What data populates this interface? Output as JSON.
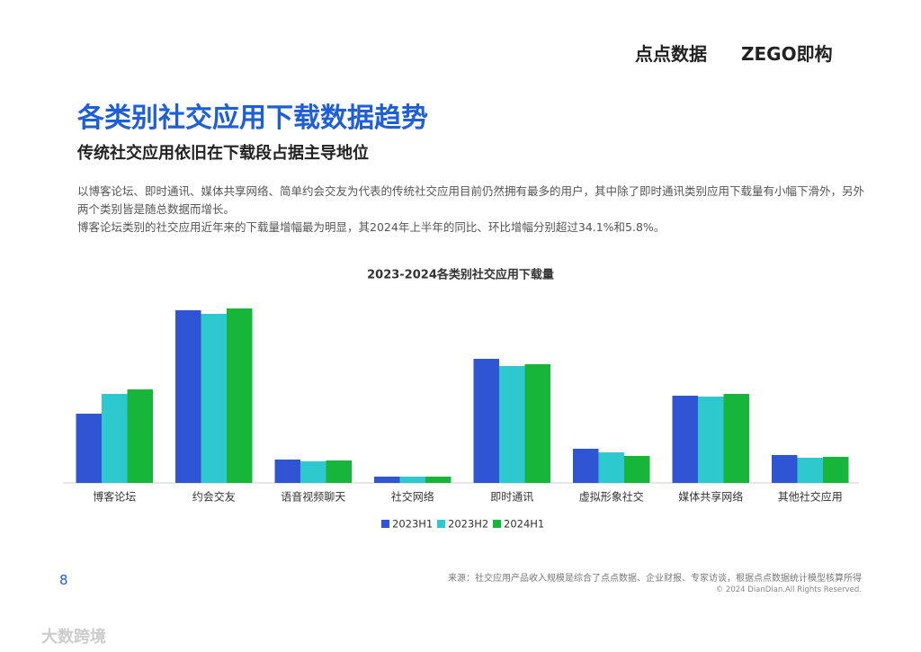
{
  "header": {
    "brand1": "点点数据",
    "brand2": "ZEGO即构",
    "title": "各类别社交应用下载数据趋势",
    "subtitle": "传统社交应用依旧在下载段占据主导地位",
    "paragraphs": [
      "以博客论坛、即时通讯、媒体共享网络、简单约会交友为代表的传统社交应用目前仍然拥有最多的用户，其中除了即时通讯类别应用下载量有小幅下滑外，另外两个类别皆是随总数据而增长。",
      "博客论坛类别的社交应用近年来的下载量增幅最为明显，其2024年上半年的同比、环比增幅分别超过34.1%和5.8%。"
    ]
  },
  "chart_data": {
    "type": "bar",
    "title": "2023-2024各类别社交应用下载量",
    "categories": [
      "博客论坛",
      "约会交友",
      "语音视频聊天",
      "社交网络",
      "即时通讯",
      "虚拟形象社交",
      "媒体共享网络",
      "其他社交应用"
    ],
    "series": [
      {
        "name": "2023H1",
        "color": "#2f55d4",
        "values": [
          77,
          192,
          26,
          7,
          138,
          38,
          97,
          31
        ]
      },
      {
        "name": "2023H2",
        "color": "#2ec9cf",
        "values": [
          99,
          188,
          24,
          7,
          130,
          34,
          96,
          28
        ]
      },
      {
        "name": "2024H1",
        "color": "#17b53a",
        "values": [
          104,
          194,
          25,
          7,
          132,
          30,
          99,
          29
        ]
      }
    ],
    "ylim": [
      0,
      200
    ]
  },
  "footer": {
    "page": "8",
    "source": "来源：社交应用产品收入规模是综合了点点数据、企业财报、专家访谈，根据点点数据统计模型核算所得",
    "copyright": "© 2024 DianDian.All Rights Reserved.",
    "watermark": "大数跨境"
  }
}
